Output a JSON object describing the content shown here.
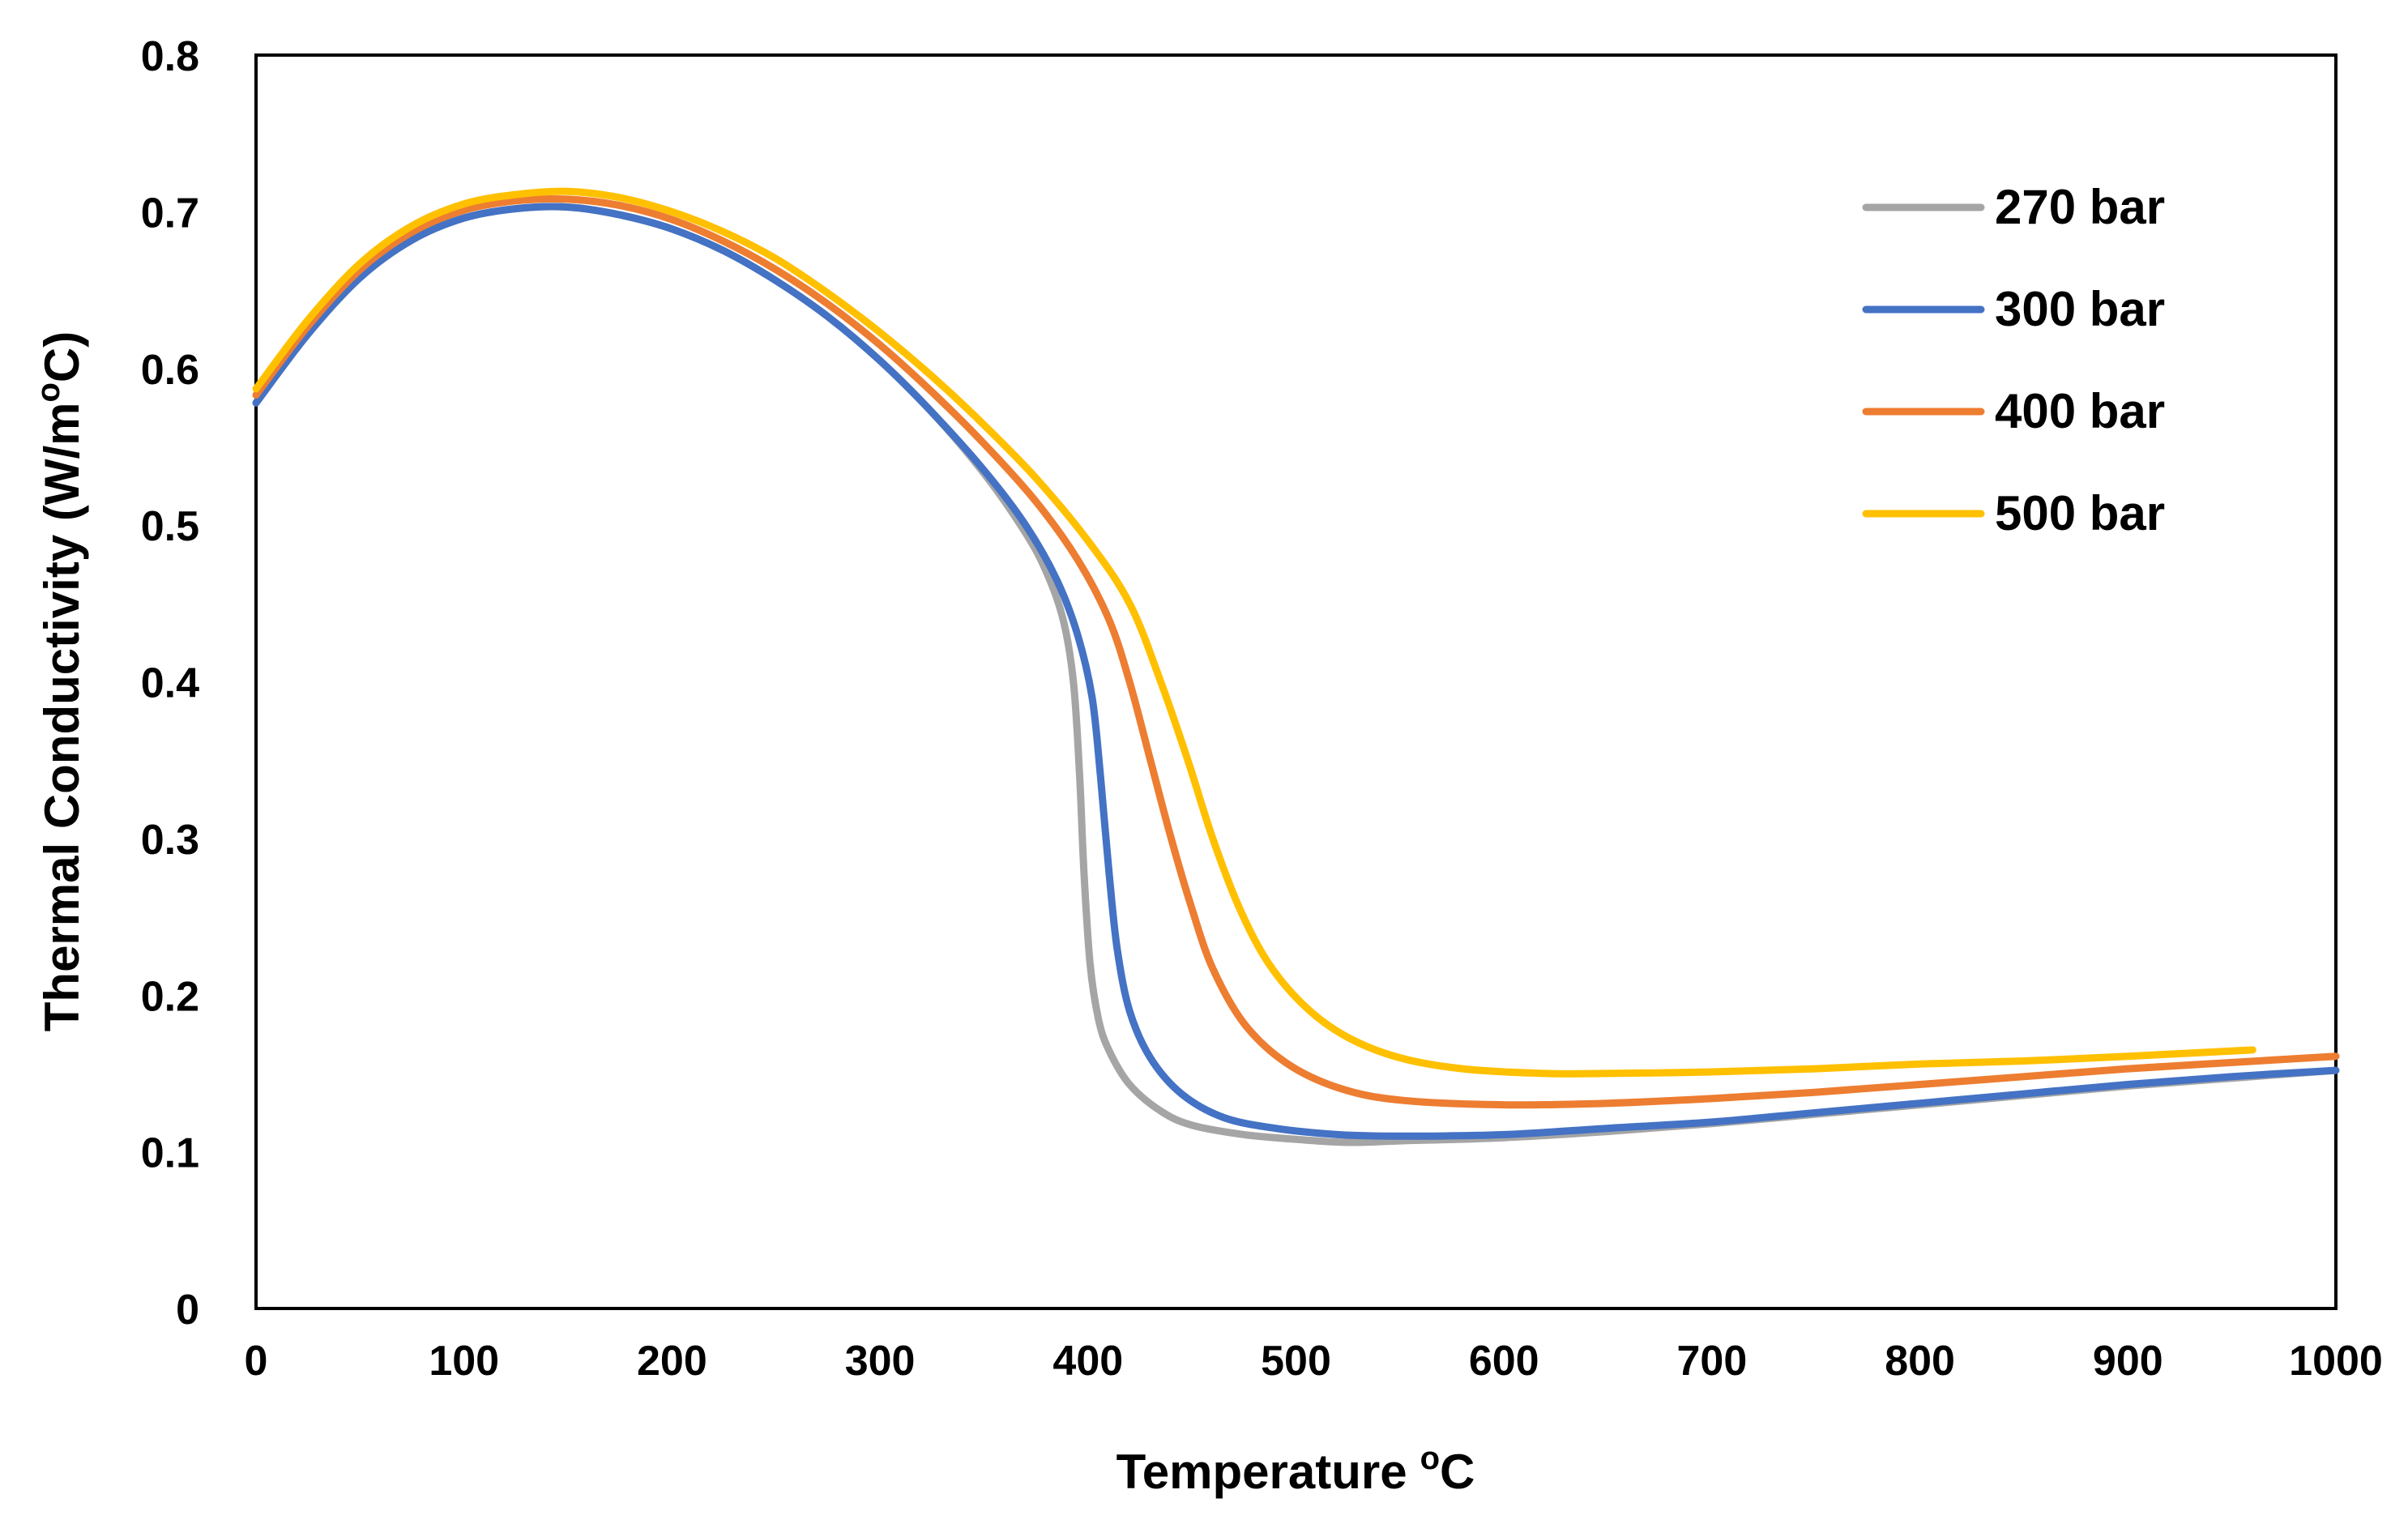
{
  "chart_data": {
    "type": "line",
    "title": "",
    "xlabel": "Temperature",
    "xlabel_unit_sup": "o",
    "xlabel_unit": "C",
    "ylabel": "Thermal Conductivity (W/m",
    "ylabel_sup": "o",
    "ylabel_end": "C)",
    "xlim": [
      0,
      1000
    ],
    "ylim": [
      0,
      0.8
    ],
    "xticks": [
      0,
      100,
      200,
      300,
      400,
      500,
      600,
      700,
      800,
      900,
      1000
    ],
    "yticks": [
      0,
      0.1,
      0.2,
      0.3,
      0.4,
      0.5,
      0.6,
      0.7,
      0.8
    ],
    "x_tick_labels": [
      "0",
      "100",
      "200",
      "300",
      "400",
      "500",
      "600",
      "700",
      "800",
      "900",
      "1000"
    ],
    "y_tick_labels": [
      "0",
      "0.1",
      "0.2",
      "0.3",
      "0.4",
      "0.5",
      "0.6",
      "0.7",
      "0.8"
    ],
    "grid": false,
    "legend_position": "top-right",
    "series": [
      {
        "name": "270 bar",
        "color": "#A5A5A5",
        "points": [
          [
            0,
            0.578
          ],
          [
            25,
            0.622
          ],
          [
            50,
            0.658
          ],
          [
            75,
            0.682
          ],
          [
            100,
            0.696
          ],
          [
            125,
            0.702
          ],
          [
            150,
            0.703
          ],
          [
            175,
            0.698
          ],
          [
            200,
            0.689
          ],
          [
            225,
            0.675
          ],
          [
            250,
            0.656
          ],
          [
            275,
            0.633
          ],
          [
            300,
            0.605
          ],
          [
            325,
            0.572
          ],
          [
            350,
            0.533
          ],
          [
            370,
            0.495
          ],
          [
            380,
            0.47
          ],
          [
            388,
            0.44
          ],
          [
            393,
            0.4
          ],
          [
            396,
            0.34
          ],
          [
            398,
            0.28
          ],
          [
            401,
            0.22
          ],
          [
            405,
            0.185
          ],
          [
            410,
            0.165
          ],
          [
            420,
            0.143
          ],
          [
            435,
            0.126
          ],
          [
            450,
            0.117
          ],
          [
            475,
            0.111
          ],
          [
            500,
            0.108
          ],
          [
            525,
            0.106
          ],
          [
            550,
            0.107
          ],
          [
            600,
            0.109
          ],
          [
            650,
            0.113
          ],
          [
            700,
            0.118
          ],
          [
            750,
            0.124
          ],
          [
            800,
            0.13
          ],
          [
            850,
            0.136
          ],
          [
            900,
            0.142
          ],
          [
            950,
            0.147
          ],
          [
            1000,
            0.152
          ]
        ]
      },
      {
        "name": "300 bar",
        "color": "#4472C4",
        "points": [
          [
            0,
            0.578
          ],
          [
            25,
            0.622
          ],
          [
            50,
            0.658
          ],
          [
            75,
            0.682
          ],
          [
            100,
            0.696
          ],
          [
            125,
            0.702
          ],
          [
            150,
            0.703
          ],
          [
            175,
            0.698
          ],
          [
            200,
            0.689
          ],
          [
            225,
            0.675
          ],
          [
            250,
            0.656
          ],
          [
            275,
            0.633
          ],
          [
            300,
            0.605
          ],
          [
            325,
            0.572
          ],
          [
            350,
            0.535
          ],
          [
            370,
            0.5
          ],
          [
            385,
            0.465
          ],
          [
            395,
            0.43
          ],
          [
            402,
            0.39
          ],
          [
            406,
            0.34
          ],
          [
            410,
            0.28
          ],
          [
            414,
            0.23
          ],
          [
            420,
            0.19
          ],
          [
            430,
            0.16
          ],
          [
            445,
            0.137
          ],
          [
            465,
            0.122
          ],
          [
            490,
            0.115
          ],
          [
            520,
            0.111
          ],
          [
            550,
            0.11
          ],
          [
            600,
            0.111
          ],
          [
            650,
            0.115
          ],
          [
            700,
            0.119
          ],
          [
            750,
            0.125
          ],
          [
            800,
            0.131
          ],
          [
            850,
            0.137
          ],
          [
            900,
            0.143
          ],
          [
            950,
            0.148
          ],
          [
            1000,
            0.152
          ]
        ]
      },
      {
        "name": "400 bar",
        "color": "#ED7D31",
        "points": [
          [
            0,
            0.583
          ],
          [
            25,
            0.627
          ],
          [
            50,
            0.663
          ],
          [
            75,
            0.687
          ],
          [
            100,
            0.701
          ],
          [
            125,
            0.707
          ],
          [
            150,
            0.708
          ],
          [
            175,
            0.704
          ],
          [
            200,
            0.695
          ],
          [
            225,
            0.681
          ],
          [
            250,
            0.663
          ],
          [
            275,
            0.641
          ],
          [
            300,
            0.615
          ],
          [
            325,
            0.585
          ],
          [
            350,
            0.552
          ],
          [
            375,
            0.515
          ],
          [
            395,
            0.478
          ],
          [
            410,
            0.44
          ],
          [
            420,
            0.4
          ],
          [
            430,
            0.35
          ],
          [
            440,
            0.3
          ],
          [
            450,
            0.255
          ],
          [
            460,
            0.217
          ],
          [
            475,
            0.182
          ],
          [
            495,
            0.157
          ],
          [
            520,
            0.141
          ],
          [
            550,
            0.133
          ],
          [
            600,
            0.13
          ],
          [
            650,
            0.131
          ],
          [
            700,
            0.134
          ],
          [
            750,
            0.138
          ],
          [
            800,
            0.143
          ],
          [
            850,
            0.148
          ],
          [
            900,
            0.153
          ],
          [
            950,
            0.157
          ],
          [
            1000,
            0.161
          ]
        ]
      },
      {
        "name": "500 bar",
        "color": "#FFC000",
        "points": [
          [
            0,
            0.587
          ],
          [
            25,
            0.631
          ],
          [
            50,
            0.667
          ],
          [
            75,
            0.691
          ],
          [
            100,
            0.705
          ],
          [
            125,
            0.711
          ],
          [
            150,
            0.713
          ],
          [
            175,
            0.709
          ],
          [
            200,
            0.7
          ],
          [
            225,
            0.687
          ],
          [
            250,
            0.67
          ],
          [
            275,
            0.648
          ],
          [
            300,
            0.623
          ],
          [
            325,
            0.595
          ],
          [
            350,
            0.564
          ],
          [
            375,
            0.53
          ],
          [
            400,
            0.49
          ],
          [
            420,
            0.45
          ],
          [
            435,
            0.4
          ],
          [
            448,
            0.35
          ],
          [
            460,
            0.3
          ],
          [
            473,
            0.255
          ],
          [
            487,
            0.22
          ],
          [
            505,
            0.192
          ],
          [
            525,
            0.173
          ],
          [
            550,
            0.16
          ],
          [
            580,
            0.153
          ],
          [
            620,
            0.15
          ],
          [
            650,
            0.15
          ],
          [
            700,
            0.151
          ],
          [
            750,
            0.153
          ],
          [
            800,
            0.156
          ],
          [
            850,
            0.158
          ],
          [
            900,
            0.161
          ],
          [
            960,
            0.165
          ]
        ]
      }
    ]
  }
}
